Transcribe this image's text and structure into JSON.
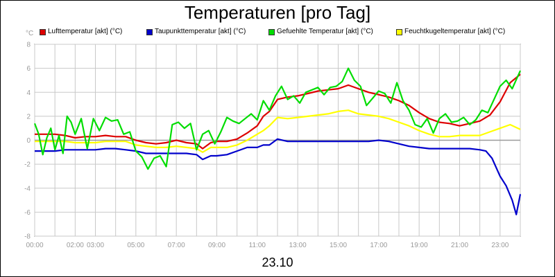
{
  "chart_data": {
    "type": "line",
    "title": "Temperaturen [pro Tag]",
    "unit": "°C",
    "date_label": "23.10",
    "xlim": [
      0,
      24
    ],
    "ylim": [
      -8,
      8
    ],
    "y_ticks": [
      -8,
      -6,
      -4,
      -2,
      0,
      2,
      4,
      6,
      8
    ],
    "x_tick_labels": [
      {
        "x": 0,
        "label": "00:00"
      },
      {
        "x": 2,
        "label": "02:00"
      },
      {
        "x": 3,
        "label": "03:00"
      },
      {
        "x": 5,
        "label": "05:00"
      },
      {
        "x": 7,
        "label": "07:00"
      },
      {
        "x": 9,
        "label": "09:00"
      },
      {
        "x": 11,
        "label": "11:00"
      },
      {
        "x": 13,
        "label": "13:00"
      },
      {
        "x": 15,
        "label": "15:00"
      },
      {
        "x": 17,
        "label": "17:00"
      },
      {
        "x": 19,
        "label": "19:00"
      },
      {
        "x": 21,
        "label": "21:00"
      },
      {
        "x": 23,
        "label": "23:00"
      }
    ],
    "grid": true,
    "zero_line": true,
    "legend_position": "top",
    "series": [
      {
        "name": "Lufttemperatur [akt] (°C)",
        "color": "#dd0000",
        "x": [
          0,
          0.5,
          1,
          1.5,
          2,
          2.5,
          3,
          3.5,
          4,
          4.5,
          5,
          5.5,
          6,
          6.5,
          7,
          7.5,
          8,
          8.3,
          8.7,
          9,
          9.5,
          10,
          10.5,
          11,
          11.3,
          11.6,
          12,
          12.5,
          13,
          13.5,
          14,
          14.5,
          15,
          15.5,
          16,
          16.5,
          17,
          17.5,
          18,
          18.5,
          19,
          19.5,
          20,
          20.5,
          21,
          21.5,
          22,
          22.5,
          23,
          23.5,
          24
        ],
        "y": [
          0.5,
          0.5,
          0.5,
          0.4,
          0.2,
          0.3,
          0.3,
          0.4,
          0.3,
          0.3,
          0,
          -0.2,
          -0.3,
          -0.2,
          0,
          -0.2,
          -0.3,
          -0.7,
          -0.2,
          -0.1,
          -0.1,
          0.1,
          0.6,
          1.2,
          2,
          2.4,
          3.4,
          3.6,
          3.7,
          3.9,
          4.1,
          4.2,
          4.3,
          4.6,
          4.3,
          4.0,
          3.8,
          3.6,
          3.3,
          2.9,
          2.3,
          1.8,
          1.5,
          1.4,
          1.2,
          1.4,
          1.6,
          2.1,
          3.2,
          4.8,
          5.5
        ]
      },
      {
        "name": "Taupunkttemperatur [akt] (°C)",
        "color": "#0000cc",
        "x": [
          0,
          0.5,
          1,
          1.5,
          2,
          2.5,
          3,
          3.5,
          4,
          4.5,
          5,
          5.5,
          6,
          6.5,
          7,
          7.5,
          8,
          8.3,
          8.7,
          9,
          9.5,
          10,
          10.5,
          11,
          11.3,
          11.6,
          12,
          12.5,
          13,
          13.5,
          14,
          14.5,
          15,
          15.5,
          16,
          16.5,
          17,
          17.5,
          18,
          18.5,
          19,
          19.5,
          20,
          20.5,
          21,
          21.5,
          22,
          22.3,
          22.6,
          23,
          23.3,
          23.6,
          23.8,
          24
        ],
        "y": [
          -0.9,
          -0.9,
          -0.9,
          -0.8,
          -0.8,
          -0.8,
          -0.8,
          -0.7,
          -0.7,
          -0.8,
          -0.9,
          -1.1,
          -1.1,
          -1.1,
          -1.1,
          -1.1,
          -1.2,
          -1.6,
          -1.3,
          -1.3,
          -1.2,
          -0.9,
          -0.6,
          -0.6,
          -0.4,
          -0.4,
          0.1,
          -0.1,
          -0.1,
          -0.1,
          -0.1,
          -0.1,
          -0.1,
          -0.1,
          -0.1,
          -0.1,
          0,
          -0.1,
          -0.3,
          -0.5,
          -0.6,
          -0.7,
          -0.7,
          -0.7,
          -0.7,
          -0.7,
          -0.8,
          -0.9,
          -1.5,
          -3.0,
          -3.8,
          -5.0,
          -6.2,
          -4.5
        ]
      },
      {
        "name": "Gefuehlte Temperatur [akt] (°C)",
        "color": "#00dd00",
        "x": [
          0,
          0.2,
          0.4,
          0.6,
          0.8,
          1,
          1.2,
          1.4,
          1.6,
          1.8,
          2,
          2.3,
          2.6,
          2.9,
          3.2,
          3.5,
          3.8,
          4.1,
          4.4,
          4.7,
          5,
          5.3,
          5.6,
          5.9,
          6.2,
          6.5,
          6.8,
          7.1,
          7.4,
          7.7,
          8,
          8.3,
          8.6,
          8.9,
          9.2,
          9.5,
          9.8,
          10.1,
          10.4,
          10.7,
          11,
          11.3,
          11.6,
          11.9,
          12.2,
          12.5,
          12.8,
          13.1,
          13.4,
          13.7,
          14,
          14.3,
          14.6,
          14.9,
          15.2,
          15.5,
          15.8,
          16.1,
          16.4,
          16.7,
          17,
          17.3,
          17.6,
          17.9,
          18.2,
          18.5,
          18.8,
          19.1,
          19.4,
          19.7,
          20,
          20.3,
          20.6,
          20.9,
          21.2,
          21.5,
          21.8,
          22.1,
          22.4,
          22.7,
          23,
          23.3,
          23.6,
          24
        ],
        "y": [
          1.4,
          0.5,
          -1.2,
          0.2,
          1.0,
          -0.8,
          0.4,
          -1.1,
          2.0,
          1.5,
          0.5,
          1.8,
          -0.7,
          1.8,
          0.8,
          1.9,
          1.6,
          1.7,
          0.5,
          0.7,
          -0.9,
          -1.4,
          -2.4,
          -1.5,
          -1.3,
          -2.2,
          1.3,
          1.5,
          1.0,
          1.4,
          -0.8,
          0.5,
          0.8,
          -0.3,
          0.7,
          1.9,
          1.6,
          1.4,
          1.8,
          2.2,
          1.7,
          3.3,
          2.5,
          3.7,
          4.5,
          3.4,
          3.7,
          3.1,
          4.0,
          4.2,
          4.4,
          3.8,
          4.4,
          4.5,
          4.9,
          6.0,
          5.0,
          4.5,
          2.9,
          3.5,
          4.1,
          3.9,
          3.1,
          4.8,
          3.3,
          2.5,
          1.3,
          1.1,
          1.8,
          0.6,
          1.8,
          2.2,
          1.5,
          1.6,
          1.9,
          1.3,
          1.7,
          2.5,
          2.3,
          3.4,
          4.5,
          5.0,
          4.3,
          5.8
        ]
      },
      {
        "name": "Feuchtkugeltemperatur [akt] (°C)",
        "color": "#ffff00",
        "x": [
          0,
          0.5,
          1,
          1.5,
          2,
          2.5,
          3,
          3.5,
          4,
          4.5,
          5,
          5.5,
          6,
          6.5,
          7,
          7.5,
          8,
          8.3,
          8.7,
          9,
          9.5,
          10,
          10.5,
          11,
          11.3,
          11.6,
          12,
          12.5,
          13,
          13.5,
          14,
          14.5,
          15,
          15.5,
          16,
          16.5,
          17,
          17.5,
          18,
          18.5,
          19,
          19.5,
          20,
          20.5,
          21,
          21.5,
          22,
          22.5,
          23,
          23.5,
          24
        ],
        "y": [
          -0.1,
          -0.1,
          -0.1,
          -0.1,
          -0.2,
          -0.2,
          -0.2,
          -0.1,
          -0.1,
          -0.1,
          -0.4,
          -0.5,
          -0.6,
          -0.6,
          -0.5,
          -0.6,
          -0.7,
          -1.0,
          -0.6,
          -0.6,
          -0.6,
          -0.4,
          0,
          0.5,
          0.8,
          1.2,
          1.9,
          1.8,
          1.9,
          2.0,
          2.1,
          2.2,
          2.4,
          2.5,
          2.2,
          2.1,
          2.0,
          1.8,
          1.5,
          1.2,
          0.8,
          0.5,
          0.3,
          0.3,
          0.4,
          0.4,
          0.4,
          0.7,
          1.0,
          1.3,
          0.9
        ]
      }
    ]
  }
}
